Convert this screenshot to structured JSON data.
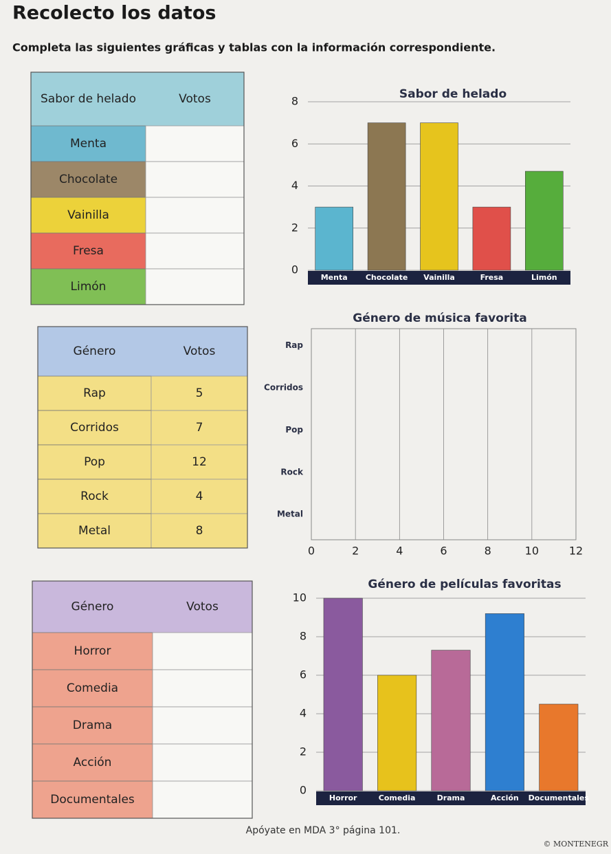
{
  "header": {
    "title": "Recolecto los datos",
    "instructions": "Completa las siguientes gráficas y tablas con la información correspondiente."
  },
  "tables": [
    {
      "headers": [
        "Sabor de helado",
        "Votos"
      ],
      "header_color": "#9fd0da",
      "rows": [
        [
          "Menta"
        ],
        [
          "Chocolate"
        ],
        [
          "Vainilla"
        ],
        [
          "Fresa"
        ],
        [
          "Limón"
        ]
      ],
      "row_colors": [
        "#6fb9cf",
        "#9c8768",
        "#ecd23a",
        "#e86b5e",
        "#80bf55"
      ]
    },
    {
      "headers": [
        "Género",
        "Votos"
      ],
      "header_color": "#b3c8e6",
      "rows": [
        [
          "Rap",
          5
        ],
        [
          "Corridos",
          7
        ],
        [
          "Pop",
          12
        ],
        [
          "Rock",
          4
        ],
        [
          "Metal",
          8
        ]
      ],
      "row_colors": [
        "#f3df86",
        "#f3df86",
        "#f3df86",
        "#f3df86",
        "#f3df86"
      ]
    },
    {
      "headers": [
        "Género",
        "Votos"
      ],
      "header_color": "#c9b8dc",
      "rows": [
        [
          "Horror"
        ],
        [
          "Comedia"
        ],
        [
          "Drama"
        ],
        [
          "Acción"
        ],
        [
          "Documentales"
        ]
      ],
      "row_colors": [
        "#eea38e",
        "#eea38e",
        "#eea38e",
        "#eea38e",
        "#eea38e"
      ]
    }
  ],
  "charts": [
    {
      "type": "bar",
      "title": "Sabor de helado",
      "categories": [
        "Menta",
        "Chocolate",
        "Vainilla",
        "Fresa",
        "Limón"
      ],
      "values": [
        3,
        7,
        7,
        3,
        4.7
      ],
      "colors": [
        "#5bb5cf",
        "#8c7752",
        "#e6c41d",
        "#e0504a",
        "#56ad3c"
      ],
      "ylim": [
        0,
        8
      ],
      "yticks": [
        0,
        2,
        4,
        6,
        8
      ]
    },
    {
      "type": "barh",
      "title": "Género de música favorita",
      "categories": [
        "Rap",
        "Corridos",
        "Pop",
        "Rock",
        "Metal"
      ],
      "xlim": [
        0,
        12
      ],
      "xticks": [
        0,
        2,
        4,
        6,
        8,
        10,
        12
      ]
    },
    {
      "type": "bar",
      "title": "Género de películas favoritas",
      "categories": [
        "Horror",
        "Comedia",
        "Drama",
        "Acción",
        "Documentales"
      ],
      "values": [
        10,
        6,
        7.3,
        9.2,
        4.5
      ],
      "colors": [
        "#8a5a9e",
        "#e7c21c",
        "#b86a98",
        "#2e7fd0",
        "#e8782c"
      ],
      "ylim": [
        0,
        10
      ],
      "yticks": [
        0,
        2,
        4,
        6,
        8,
        10
      ]
    }
  ],
  "footer": {
    "note": "Apóyate en MDA 3° página 101.",
    "copyright": "© MONTENEGR"
  }
}
